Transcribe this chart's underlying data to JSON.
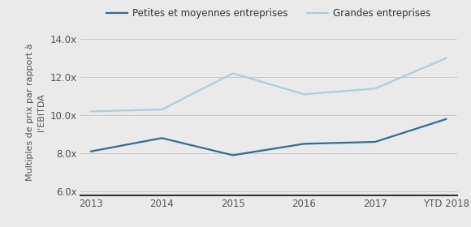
{
  "x_labels": [
    "2013",
    "2014",
    "2015",
    "2016",
    "2017",
    "YTD 2018"
  ],
  "x_values": [
    0,
    1,
    2,
    3,
    4,
    5
  ],
  "sme_values": [
    8.1,
    8.8,
    7.9,
    8.5,
    8.6,
    9.8
  ],
  "large_values": [
    10.2,
    10.3,
    12.2,
    11.1,
    11.4,
    13.0
  ],
  "sme_color": "#2e6e8e",
  "large_color": "#aacfdb",
  "sme_label": "Petites et moyennes entreprises",
  "large_label": "Grandes entreprises",
  "ylabel": "Multiples de prix par rapport à\nl'EBITDA",
  "ylim": [
    5.8,
    14.5
  ],
  "yticks": [
    6.0,
    8.0,
    10.0,
    12.0,
    14.0
  ],
  "ytick_labels": [
    "6.0x",
    "8.0x",
    "10.0x",
    "12.0x",
    "14.0x"
  ],
  "background_color": "#eaeaea",
  "grid_color": "#c8c8c8",
  "line_width": 1.6,
  "font_size_legend": 8.5,
  "font_size_ticks": 8.5,
  "font_size_ylabel": 8.0,
  "tick_color": "#555555",
  "bottom_spine_color": "#333333"
}
